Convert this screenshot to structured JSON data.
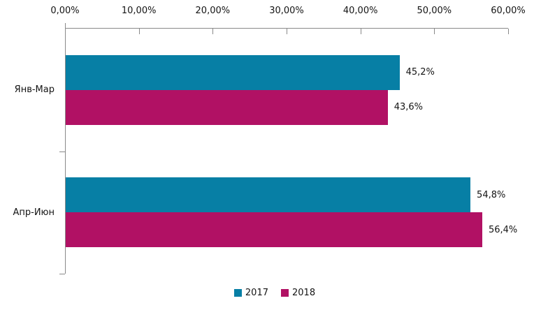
{
  "chart_data": {
    "type": "bar",
    "orientation": "horizontal",
    "title": "",
    "categories": [
      "Янв-Мар",
      "Апр-Июн"
    ],
    "series": [
      {
        "name": "2017",
        "color": "#077FA5",
        "values": [
          45.2,
          54.8
        ],
        "value_labels": [
          "45,2%",
          "54,8%"
        ]
      },
      {
        "name": "2018",
        "color": "#B11164",
        "values": [
          43.6,
          56.4
        ],
        "value_labels": [
          "43,6%",
          "56,4%"
        ]
      }
    ],
    "x_axis": {
      "position": "top",
      "min": 0,
      "max": 60,
      "tick_labels": [
        "0,00%",
        "10,00%",
        "20,00%",
        "30,00%",
        "40,00%",
        "50,00%",
        "60,00%"
      ]
    },
    "grid": false,
    "legend": {
      "position": "bottom",
      "entries": [
        "2017",
        "2018"
      ]
    },
    "colors": {
      "axis": "#898989",
      "text": "#141414",
      "background": "#ffffff"
    }
  }
}
